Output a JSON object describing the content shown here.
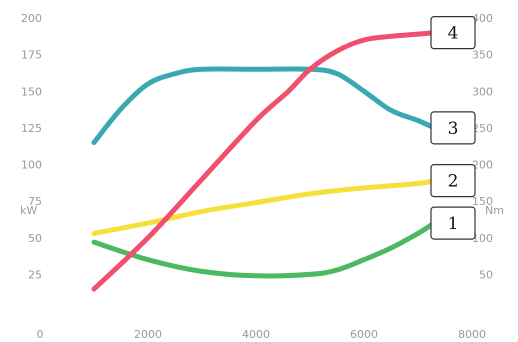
{
  "chart_data": {
    "type": "line",
    "title": "",
    "xlabel": "",
    "ylabel_left": "kW",
    "ylabel_right": "Nm",
    "x_ticks": [
      "0",
      "2000",
      "4000",
      "6000",
      "8000"
    ],
    "y_left_ticks": [
      "25",
      "50",
      "75",
      "100",
      "125",
      "150",
      "175",
      "200"
    ],
    "y_right_ticks": [
      "50",
      "100",
      "150",
      "200",
      "250",
      "300",
      "350",
      "400"
    ],
    "xlim": [
      0,
      8000
    ],
    "ylim_left": [
      0,
      200
    ],
    "ylim_right": [
      0,
      400
    ],
    "grid": false,
    "series": [
      {
        "name": "4",
        "axis": "right",
        "color": "#f0506e",
        "x": [
          1000,
          2000,
          3000,
          4000,
          4600,
          5000,
          5500,
          6000,
          6500,
          7000,
          7300
        ],
        "y": [
          30,
          100,
          180,
          260,
          300,
          330,
          355,
          370,
          375,
          378,
          380
        ]
      },
      {
        "name": "3",
        "axis": "left",
        "color": "#3aa8b0",
        "x": [
          1000,
          1500,
          2000,
          2500,
          3000,
          4000,
          5000,
          5500,
          6000,
          6500,
          7000,
          7300
        ],
        "y": [
          115,
          138,
          155,
          162,
          165,
          165,
          165,
          162,
          150,
          137,
          130,
          125
        ]
      },
      {
        "name": "2",
        "axis": "left",
        "color": "#f5e03a",
        "x": [
          1000,
          2000,
          3000,
          4000,
          5000,
          6000,
          7000,
          7300
        ],
        "y": [
          53,
          60,
          68,
          74,
          80,
          84,
          87,
          89
        ]
      },
      {
        "name": "1",
        "axis": "left",
        "color": "#4cb860",
        "x": [
          1000,
          2000,
          3000,
          4000,
          5000,
          5500,
          6000,
          6500,
          7000,
          7300
        ],
        "y": [
          47,
          35,
          27,
          24,
          25,
          28,
          35,
          43,
          53,
          60
        ]
      }
    ]
  }
}
